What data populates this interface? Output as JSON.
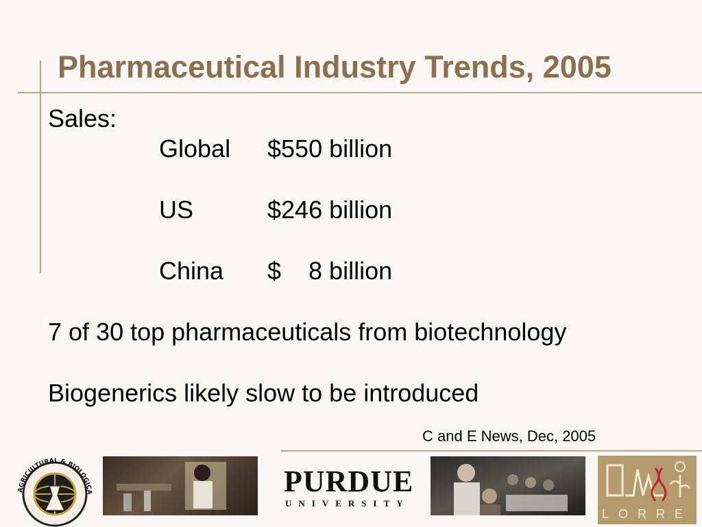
{
  "title": "Pharmaceutical Industry Trends, 2005",
  "sales_label": "Sales:",
  "sales": [
    {
      "region": "Global",
      "value": "$550 billion"
    },
    {
      "region": "US",
      "value": "$246 billion"
    },
    {
      "region": "China",
      "value": "$    8 billion"
    }
  ],
  "points": [
    "7 of 30 top pharmaceuticals from biotechnology",
    "Biogenerics likely slow to be introduced"
  ],
  "citation": "C and E News, Dec, 2005",
  "footer": {
    "seal_text": "AGRICULTURAL & BIOLOGICAL ENGINEERING",
    "purdue_word": "PURDUE",
    "purdue_sub": "UNIVERSITY",
    "lorre_text": "LORRE"
  },
  "colors": {
    "title": "#8b6f4e",
    "rule": "#b5a48c",
    "background": "#f8f7f3"
  }
}
